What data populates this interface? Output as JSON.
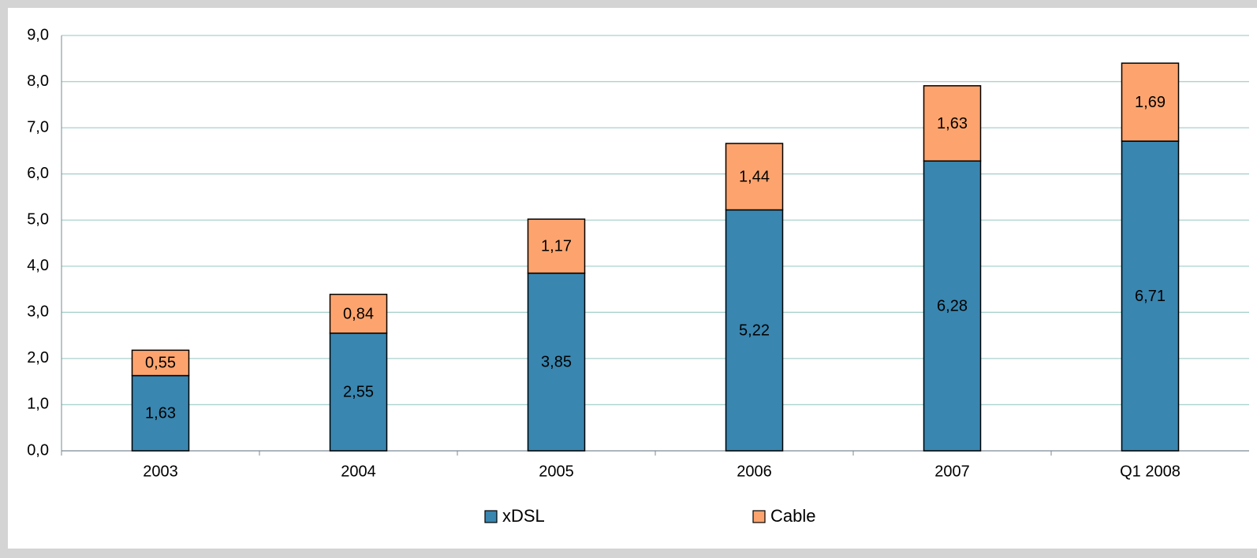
{
  "chart_data": {
    "type": "stacked_bar",
    "categories": [
      "2003",
      "2004",
      "2005",
      "2006",
      "2007",
      "Q1 2008"
    ],
    "series": [
      {
        "name": "xDSL",
        "color": "#3986b0",
        "values": [
          1.63,
          2.55,
          3.85,
          5.22,
          6.28,
          6.71
        ],
        "value_labels": [
          "1,63",
          "2,55",
          "3,85",
          "5,22",
          "6,28",
          "6,71"
        ]
      },
      {
        "name": "Cable",
        "color": "#fda46e",
        "values": [
          0.55,
          0.84,
          1.17,
          1.44,
          1.63,
          1.69
        ],
        "value_labels": [
          "0,55",
          "0,84",
          "1,17",
          "1,44",
          "1,63",
          "1,69"
        ]
      }
    ],
    "ylim": [
      0,
      9
    ],
    "yticks": [
      {
        "value": 0,
        "label": "0,0"
      },
      {
        "value": 1,
        "label": "1,0"
      },
      {
        "value": 2,
        "label": "2,0"
      },
      {
        "value": 3,
        "label": "3,0"
      },
      {
        "value": 4,
        "label": "4,0"
      },
      {
        "value": 5,
        "label": "5,0"
      },
      {
        "value": 6,
        "label": "6,0"
      },
      {
        "value": 7,
        "label": "7,0"
      },
      {
        "value": 8,
        "label": "8,0"
      },
      {
        "value": 9,
        "label": "9,0"
      }
    ],
    "grid": true,
    "legend": "bottom"
  }
}
